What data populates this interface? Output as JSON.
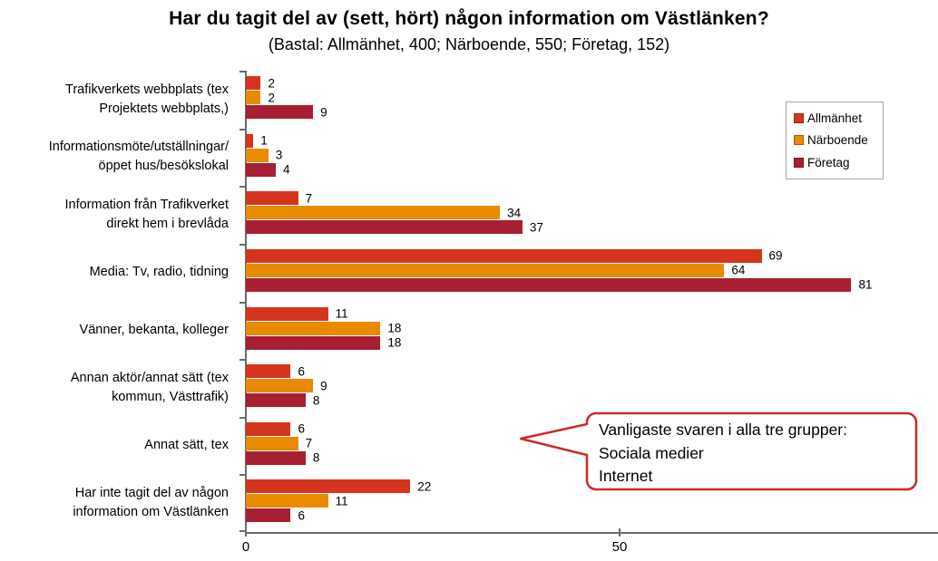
{
  "chart_data": {
    "type": "bar",
    "orientation": "horizontal",
    "title": "Har du tagit del av (sett, hört) någon information om Västlänken?",
    "subtitle": "(Bastal: Allmänhet, 400; Närboende, 550; Företag, 152)",
    "categories": [
      "Trafikverkets webbplats (tex\nProjektets webbplats,)",
      "Informationsmöte/utställningar/\nöppet hus/besökslokal",
      "Information från Trafikverket\ndirekt hem i brevlåda",
      "Media: Tv, radio, tidning",
      "Vänner, bekanta, kolleger",
      "Annan aktör/annat sätt (tex\nkommun, Västtrafik)",
      "Annat sätt, tex",
      "Har inte tagit del av någon\ninformation om Västlänken"
    ],
    "series": [
      {
        "name": "Allmänhet",
        "color": "#D5351F",
        "values": [
          2,
          1,
          7,
          69,
          11,
          6,
          6,
          22
        ]
      },
      {
        "name": "Närboende",
        "color": "#E98A00",
        "values": [
          2,
          3,
          34,
          64,
          18,
          9,
          7,
          11
        ]
      },
      {
        "name": "Företag",
        "color": "#A81E33",
        "values": [
          9,
          4,
          37,
          81,
          18,
          8,
          8,
          6
        ]
      }
    ],
    "xlim": [
      0,
      92.5
    ],
    "x_ticks": [
      0,
      50
    ],
    "grid": false,
    "legend_position": "top-right",
    "axis_color": "#6b6b6b",
    "annotation": {
      "border_color": "#CB2C24",
      "lines": [
        "Vanligaste svaren i alla tre grupper:",
        "Sociala medier",
        "Internet"
      ]
    }
  }
}
